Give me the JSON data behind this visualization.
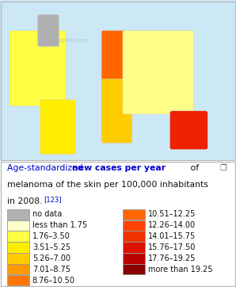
{
  "background_color": "#ffffff",
  "border_color": "#bbbbbb",
  "map_bg": "#ddeeff",
  "title_parts": [
    {
      "text": "Age-standardized ",
      "bold": false,
      "blue": true
    },
    {
      "text": "new cases per year",
      "bold": true,
      "blue": true
    },
    {
      "text": " of",
      "bold": false,
      "blue": false
    }
  ],
  "title_line2": "melanoma of the skin per 100,000 inhabitants",
  "title_line3": "in 2008.",
  "title_ref": "[123]",
  "legend_items_left": [
    {
      "label": "no data",
      "color": "#b0b0b0"
    },
    {
      "label": "less than 1.75",
      "color": "#ffffcc"
    },
    {
      "label": "1.76–3.50",
      "color": "#ffff44"
    },
    {
      "label": "3.51–5.25",
      "color": "#ffee00"
    },
    {
      "label": "5.26–7.00",
      "color": "#ffcc00"
    },
    {
      "label": "7.01–8.75",
      "color": "#ff9900"
    },
    {
      "label": "8.76–10.50",
      "color": "#ff7700"
    }
  ],
  "legend_items_right": [
    {
      "label": "10.51–12.25",
      "color": "#ff6600"
    },
    {
      "label": "12.26–14.00",
      "color": "#ff4400"
    },
    {
      "label": "14.01–15.75",
      "color": "#ee3300"
    },
    {
      "label": "15.76–17.50",
      "color": "#dd1100"
    },
    {
      "label": "17.76–19.25",
      "color": "#bb0000"
    },
    {
      "label": "more than 19.25",
      "color": "#880000"
    }
  ],
  "text_color": "#111111",
  "title_blue": "#0000cc",
  "label_fontsize": 7.0,
  "title_fontsize": 7.8
}
